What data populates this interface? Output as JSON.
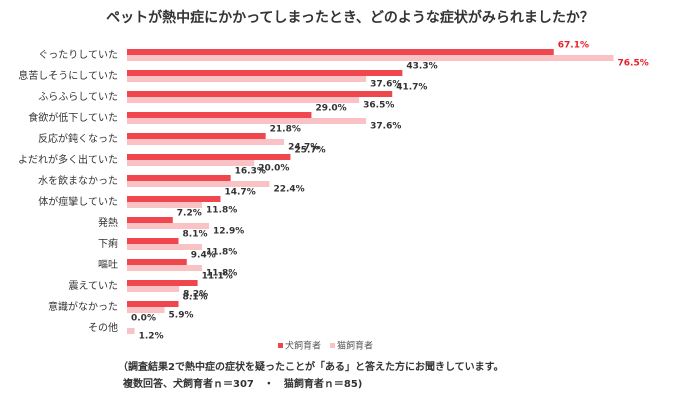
{
  "chart_data": {
    "type": "bar",
    "orientation": "horizontal",
    "title": "ペットが熱中症にかかってしまったとき、どのような症状がみられましたか？",
    "categories": [
      "ぐったりしていた",
      "息苦しそうにしていた",
      "ふらふらしていた",
      "食欲が低下していた",
      "反応が鈍くなった",
      "よだれが多く出ていた",
      "水を飲まなかった",
      "体が痙攣していた",
      "発熱",
      "下痢",
      "嘔吐",
      "震えていた",
      "意識がなかった",
      "その他"
    ],
    "series": [
      {
        "name": "犬飼育者",
        "color": "#f0474f",
        "values": [
          67.1,
          43.3,
          41.7,
          29.0,
          21.8,
          25.7,
          16.3,
          14.7,
          7.2,
          8.1,
          9.4,
          11.1,
          8.1,
          0.0
        ],
        "value_labels": [
          "67.1%",
          "43.3%",
          "41.7%",
          "29.0%",
          "21.8%",
          "25.7%",
          "16.3%",
          "14.7%",
          "7.2%",
          "8.1%",
          "9.4%",
          "11.1%",
          "8.1%",
          "0.0%"
        ]
      },
      {
        "name": "猫飼育者",
        "color": "#f9c3c6",
        "values": [
          76.5,
          37.6,
          36.5,
          37.6,
          24.7,
          20.0,
          22.4,
          11.8,
          12.9,
          11.8,
          11.8,
          8.2,
          5.9,
          1.2
        ],
        "value_labels": [
          "76.5%",
          "37.6%",
          "36.5%",
          "37.6%",
          "24.7%",
          "20.0%",
          "22.4%",
          "11.8%",
          "12.9%",
          "11.8%",
          "11.8%",
          "8.2%",
          "5.9%",
          "1.2%"
        ]
      }
    ],
    "notes": [
      "（調査結果2で熱中症の症状を疑ったことが「ある」と答えた方にお聞きしています。",
      "複数回答、犬飼育者ｎ＝307　・　猫飼育者ｎ＝85)"
    ]
  }
}
